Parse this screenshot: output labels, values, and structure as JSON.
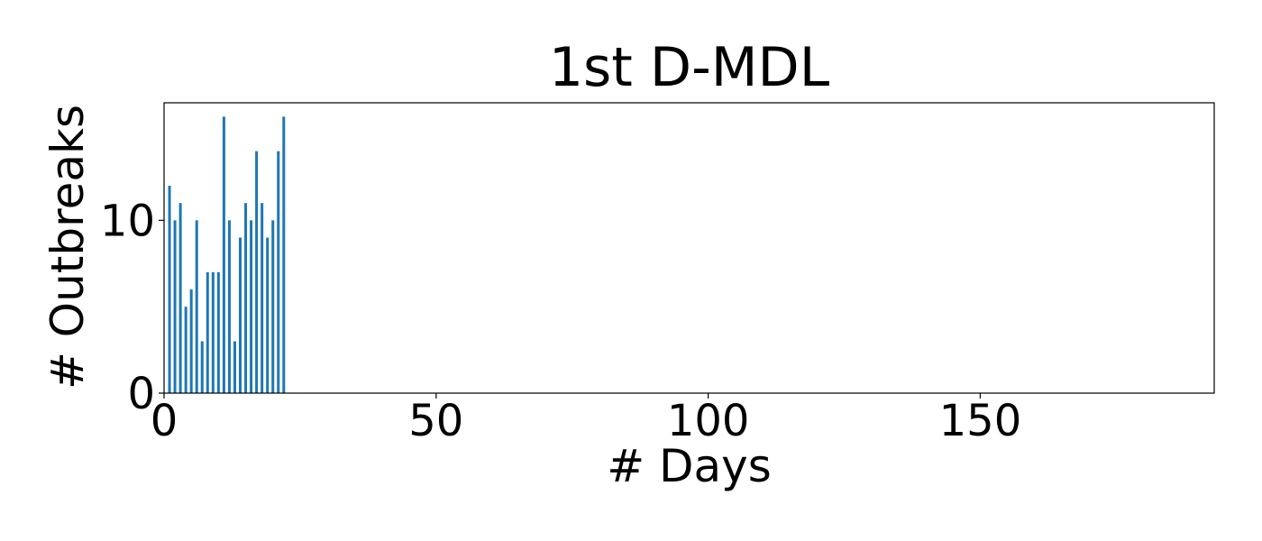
{
  "chart_data": {
    "type": "bar",
    "title": "1st D-MDL",
    "xlabel": "# Days",
    "ylabel": "# Outbreaks",
    "x": [
      1,
      2,
      3,
      4,
      5,
      6,
      7,
      8,
      9,
      10,
      11,
      12,
      13,
      14,
      15,
      16,
      17,
      18,
      19,
      20,
      21,
      22
    ],
    "values": [
      12,
      10,
      11,
      5,
      6,
      10,
      3,
      7,
      7,
      7,
      16,
      10,
      3,
      9,
      11,
      10,
      14,
      11,
      9,
      10,
      14,
      16
    ],
    "xlim": [
      0,
      193
    ],
    "ylim": [
      0,
      16.8
    ],
    "xticks": [
      0,
      50,
      100,
      150
    ],
    "yticks": [
      0,
      10
    ],
    "grid": false,
    "bar_color": "#1f77b4"
  }
}
